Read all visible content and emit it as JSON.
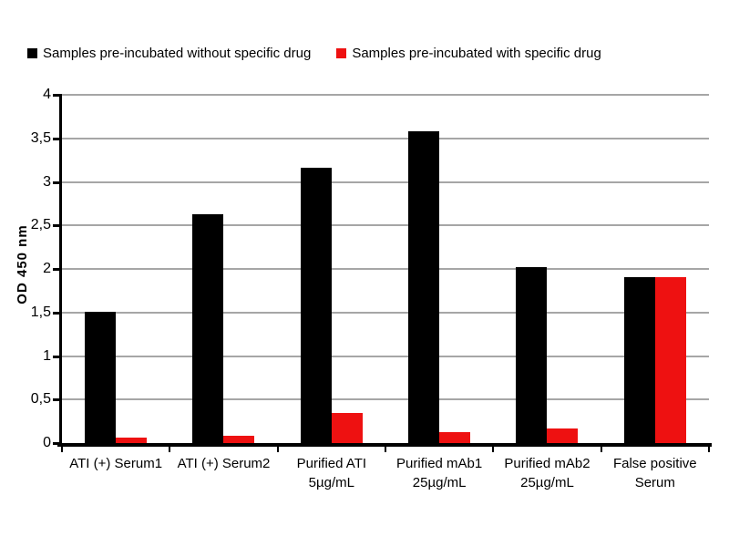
{
  "legend": {
    "items": [
      {
        "label": "Samples pre-incubated without specific drug",
        "color": "#000000"
      },
      {
        "label": "Samples pre-incubated with specific drug",
        "color": "#ee1111"
      }
    ]
  },
  "chart_data": {
    "type": "bar",
    "title": "",
    "xlabel": "",
    "ylabel": "OD 450 nm",
    "ylim": [
      0,
      4
    ],
    "ytick_step": 0.5,
    "ytick_labels": [
      "0",
      "0,5",
      "1",
      "1,5",
      "2",
      "2,5",
      "3",
      "3,5",
      "4"
    ],
    "grid": true,
    "legend_position": "top",
    "categories": [
      "ATI (+) Serum1",
      "ATI (+) Serum2",
      "Purified ATI 5µg/mL",
      "Purified mAb1 25µg/mL",
      "Purified mAb2 25µg/mL",
      "False positive Serum"
    ],
    "category_display_lines": [
      [
        "ATI (+) Serum1"
      ],
      [
        "ATI (+) Serum2"
      ],
      [
        "Purified ATI",
        "5µg/mL"
      ],
      [
        "Purified mAb1",
        "25µg/mL"
      ],
      [
        "Purified mAb2",
        "25µg/mL"
      ],
      [
        "False positive",
        "Serum"
      ]
    ],
    "series": [
      {
        "name": "Samples pre-incubated without specific drug",
        "color": "#000000",
        "values": [
          1.51,
          2.63,
          3.16,
          3.58,
          2.02,
          1.91
        ]
      },
      {
        "name": "Samples pre-incubated with specific drug",
        "color": "#ee1111",
        "values": [
          0.06,
          0.08,
          0.35,
          0.13,
          0.17,
          1.91
        ]
      }
    ]
  },
  "colors": {
    "axis": "#000000",
    "gridline": "#a6a6a6",
    "background": "#ffffff"
  }
}
